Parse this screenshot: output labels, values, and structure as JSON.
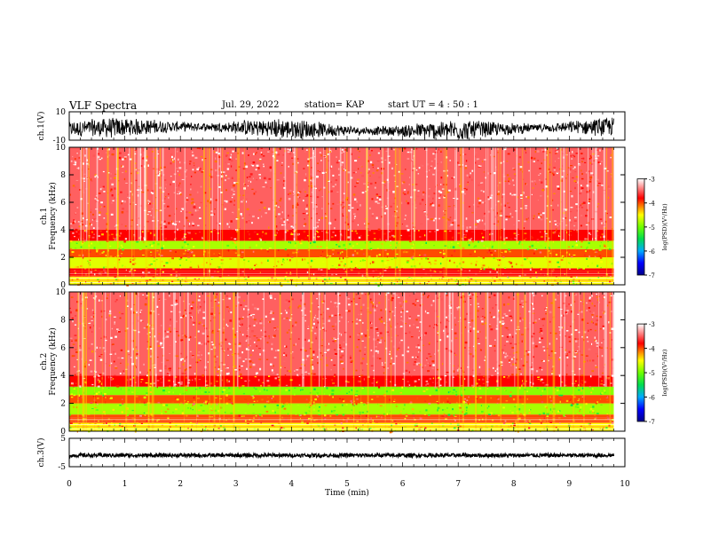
{
  "header": {
    "title": "VLF Spectra",
    "date": "Jul. 29, 2022",
    "station": "station= KAP",
    "start": "start UT =  4 : 50 : 1"
  },
  "chart_data": [
    {
      "type": "line",
      "panel": "ch1-waveform",
      "ylabel": "ch.1(V)",
      "ylim": [
        -10,
        10
      ],
      "yticks": [
        "10",
        "-10"
      ],
      "xlim": [
        0,
        10
      ],
      "description_of_series": "black amplitude trace, noise envelope approx ±5 V"
    },
    {
      "type": "heatmap",
      "panel": "ch1-spectrogram",
      "ylabel": "ch.1 Frequency (kHz)",
      "ylim": [
        0,
        10
      ],
      "yticks": [
        "0",
        "2",
        "4",
        "6",
        "8",
        "10"
      ],
      "xlim": [
        0,
        10
      ],
      "data_end_min": 9.8,
      "bands": [
        {
          "from_khz": 0.0,
          "to_khz": 0.6,
          "log_psd": -4.5
        },
        {
          "from_khz": 0.6,
          "to_khz": 1.2,
          "log_psd": -3.8
        },
        {
          "from_khz": 1.2,
          "to_khz": 2.0,
          "log_psd": -4.6
        },
        {
          "from_khz": 2.0,
          "to_khz": 2.6,
          "log_psd": -4.0
        },
        {
          "from_khz": 2.6,
          "to_khz": 3.2,
          "log_psd": -4.8
        },
        {
          "from_khz": 3.2,
          "to_khz": 4.0,
          "log_psd": -3.8
        },
        {
          "from_khz": 4.0,
          "to_khz": 10.0,
          "log_psd": -3.5
        }
      ],
      "colorbar": {
        "label": "log(PSD)(V²/Hz)",
        "range": [
          -7,
          -3
        ],
        "ticks": [
          "-3",
          "-4",
          "-5",
          "-6",
          "-7"
        ]
      }
    },
    {
      "type": "heatmap",
      "panel": "ch2-spectrogram",
      "ylabel": "ch.2 Frequency (kHz)",
      "ylim": [
        0,
        10
      ],
      "yticks": [
        "0",
        "2",
        "4",
        "6",
        "8",
        "10"
      ],
      "xlim": [
        0,
        10
      ],
      "data_end_min": 9.8,
      "bands": [
        {
          "from_khz": 0.0,
          "to_khz": 0.6,
          "log_psd": -4.5
        },
        {
          "from_khz": 0.6,
          "to_khz": 1.2,
          "log_psd": -4.0
        },
        {
          "from_khz": 1.2,
          "to_khz": 2.0,
          "log_psd": -4.8
        },
        {
          "from_khz": 2.0,
          "to_khz": 2.6,
          "log_psd": -4.0
        },
        {
          "from_khz": 2.6,
          "to_khz": 3.2,
          "log_psd": -4.9
        },
        {
          "from_khz": 3.2,
          "to_khz": 4.0,
          "log_psd": -3.8
        },
        {
          "from_khz": 4.0,
          "to_khz": 10.0,
          "log_psd": -3.5
        }
      ],
      "colorbar": {
        "label": "log(PSD)(V²/Hz)",
        "range": [
          -7,
          -3
        ],
        "ticks": [
          "-3",
          "-4",
          "-5",
          "-6",
          "-7"
        ]
      }
    },
    {
      "type": "line",
      "panel": "ch3-waveform",
      "ylabel": "ch.3(V)",
      "ylim": [
        -5,
        5
      ],
      "yticks": [
        "5",
        "-5"
      ],
      "xlim": [
        0,
        10
      ],
      "description_of_series": "dense black trace centered near -1 V"
    }
  ],
  "xaxis": {
    "label": "Time (min)",
    "ticks": [
      "0",
      "1",
      "2",
      "3",
      "4",
      "5",
      "6",
      "7",
      "8",
      "9",
      "10"
    ]
  },
  "colors": {
    "spectral": [
      "#00008b",
      "#0000ff",
      "#00c0ff",
      "#00e040",
      "#7fff00",
      "#ffff00",
      "#ff8c00",
      "#ff0000",
      "#ffffff"
    ]
  }
}
